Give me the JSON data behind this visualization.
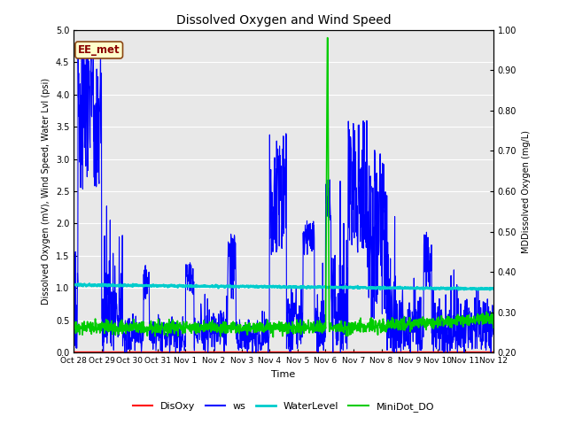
{
  "title": "Dissolved Oxygen and Wind Speed",
  "xlabel": "Time",
  "ylabel_left": "Dissolved Oxygen (mV), Wind Speed, Water Lvl (psi)",
  "ylabel_right": "MDDissolved Oxygen (mg/L)",
  "ylim_left": [
    0.0,
    5.0
  ],
  "ylim_right": [
    0.2,
    1.0
  ],
  "xtick_labels": [
    "Oct 28",
    "Oct 29",
    "Oct 30",
    "Oct 31",
    "Nov 1",
    "Nov 2",
    "Nov 3",
    "Nov 4",
    "Nov 5",
    "Nov 6",
    "Nov 7",
    "Nov 8",
    "Nov 9",
    "Nov 10",
    "Nov 11",
    "Nov 12"
  ],
  "yticks_left": [
    0.0,
    0.5,
    1.0,
    1.5,
    2.0,
    2.5,
    3.0,
    3.5,
    4.0,
    4.5,
    5.0
  ],
  "yticks_right": [
    0.2,
    0.3,
    0.4,
    0.5,
    0.6,
    0.7,
    0.8,
    0.9,
    1.0
  ],
  "annotation_text": "EE_met",
  "annotation_fg": "#8B0000",
  "annotation_bg": "#FFFFCC",
  "annotation_border": "#8B4513",
  "bg_color": "#E8E8E8",
  "line_colors": {
    "DisOxy": "#FF0000",
    "ws": "#0000FF",
    "WaterLevel": "#00CCCC",
    "MiniDot_DO": "#00CC00"
  },
  "line_widths": {
    "DisOxy": 1.2,
    "ws": 0.8,
    "WaterLevel": 1.8,
    "MiniDot_DO": 1.2
  },
  "seed": 42,
  "n_days": 15,
  "interval_min": 15
}
